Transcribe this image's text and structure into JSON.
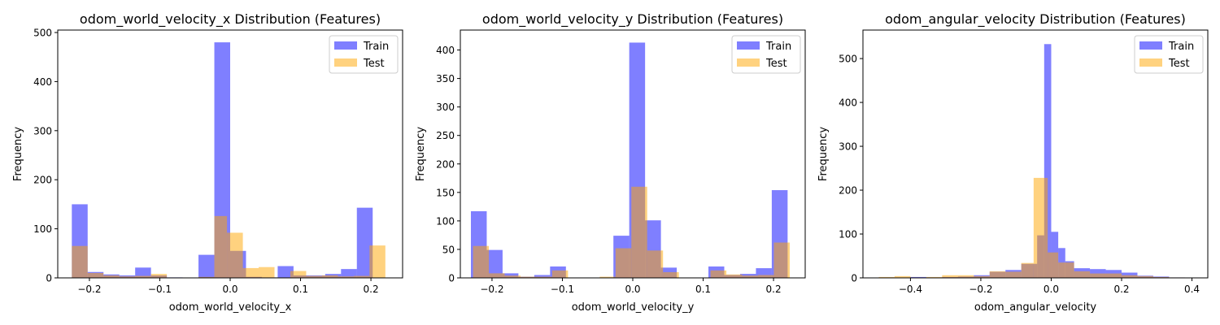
{
  "colors": {
    "train": "#0000ff",
    "test": "#ffa500",
    "bar_alpha": 0.5
  },
  "legend": {
    "train_label": "Train",
    "test_label": "Test",
    "placement": "upper right"
  },
  "chart_data": [
    {
      "type": "histogram",
      "title": "odom_world_velocity_x Distribution (Features)",
      "xlabel": "odom_world_velocity_x",
      "ylabel": "Frequency",
      "xlim": [
        -0.245,
        0.245
      ],
      "ylim": [
        0,
        505
      ],
      "xticks": [
        -0.2,
        -0.1,
        0.0,
        0.1,
        0.2
      ],
      "xtick_labels": [
        "−0.2",
        "−0.1",
        "0.0",
        "0.1",
        "0.2"
      ],
      "yticks": [
        0,
        100,
        200,
        300,
        400,
        500
      ],
      "series": [
        {
          "name": "Train",
          "bin_edges": [
            -0.225,
            -0.2025,
            -0.18,
            -0.1575,
            -0.135,
            -0.1125,
            -0.09,
            -0.0675,
            -0.045,
            -0.0225,
            0.0,
            0.0225,
            0.045,
            0.0675,
            0.09,
            0.1125,
            0.135,
            0.1575,
            0.18,
            0.2025,
            0.225
          ],
          "counts": [
            150,
            12,
            7,
            5,
            21,
            5,
            1,
            0,
            47,
            480,
            55,
            2,
            1,
            24,
            5,
            5,
            8,
            18,
            143,
            0
          ]
        },
        {
          "name": "Test",
          "bin_edges": [
            -0.225,
            -0.2025,
            -0.18,
            -0.1575,
            -0.135,
            -0.1125,
            -0.09,
            -0.0675,
            -0.045,
            -0.0225,
            -0.0045,
            0.018,
            0.0405,
            0.063,
            0.0855,
            0.108,
            0.1305,
            0.153,
            0.1755,
            0.198,
            0.2205
          ],
          "counts": [
            65,
            10,
            5,
            3,
            4,
            8,
            0,
            0,
            2,
            126,
            92,
            20,
            22,
            1,
            14,
            4,
            5,
            3,
            4,
            66
          ]
        }
      ]
    },
    {
      "type": "histogram",
      "title": "odom_world_velocity_y Distribution (Features)",
      "xlabel": "odom_world_velocity_y",
      "ylabel": "Frequency",
      "xlim": [
        -0.245,
        0.245
      ],
      "ylim": [
        0,
        435
      ],
      "xticks": [
        -0.2,
        -0.1,
        0.0,
        0.1,
        0.2
      ],
      "xtick_labels": [
        "−0.2",
        "−0.1",
        "0.0",
        "0.1",
        "0.2"
      ],
      "yticks": [
        0,
        50,
        100,
        150,
        200,
        250,
        300,
        350,
        400
      ],
      "series": [
        {
          "name": "Train",
          "bin_edges": [
            -0.23,
            -0.2075,
            -0.185,
            -0.1625,
            -0.14,
            -0.1175,
            -0.095,
            -0.0725,
            -0.05,
            -0.0275,
            -0.005,
            0.0175,
            0.04,
            0.0625,
            0.085,
            0.1075,
            0.13,
            0.1525,
            0.175,
            0.1975,
            0.22
          ],
          "counts": [
            117,
            49,
            8,
            2,
            5,
            20,
            0,
            0,
            0,
            74,
            413,
            101,
            18,
            0,
            0,
            20,
            5,
            7,
            17,
            154
          ]
        },
        {
          "name": "Test",
          "bin_edges": [
            -0.227,
            -0.2045,
            -0.182,
            -0.1595,
            -0.137,
            -0.1145,
            -0.092,
            -0.0695,
            -0.047,
            -0.0245,
            -0.002,
            0.0205,
            0.043,
            0.0655,
            0.088,
            0.1105,
            0.133,
            0.1555,
            0.178,
            0.2005,
            0.223
          ],
          "counts": [
            56,
            8,
            4,
            2,
            2,
            13,
            0,
            0,
            2,
            52,
            160,
            48,
            10,
            0,
            0,
            13,
            6,
            4,
            5,
            62
          ]
        }
      ]
    },
    {
      "type": "histogram",
      "title": "odom_angular_velocity Distribution (Features)",
      "xlabel": "odom_angular_velocity",
      "ylabel": "Frequency",
      "xlim": [
        -0.535,
        0.445
      ],
      "ylim": [
        0,
        565
      ],
      "xticks": [
        -0.4,
        -0.2,
        0.0,
        0.2,
        0.4
      ],
      "xtick_labels": [
        "−0.4",
        "−0.2",
        "0.0",
        "0.2",
        "0.4"
      ],
      "yticks": [
        0,
        100,
        200,
        300,
        400,
        500
      ],
      "series": [
        {
          "name": "Train",
          "bin_edges": [
            -0.4,
            -0.355,
            -0.31,
            -0.265,
            -0.22,
            -0.175,
            -0.13,
            -0.085,
            -0.04,
            -0.02,
            0.0,
            0.02,
            0.04,
            0.065,
            0.11,
            0.155,
            0.2,
            0.245,
            0.29,
            0.335,
            0.38
          ],
          "counts": [
            2,
            1,
            2,
            3,
            6,
            14,
            18,
            32,
            97,
            533,
            105,
            68,
            38,
            22,
            20,
            18,
            12,
            5,
            3,
            1
          ]
        },
        {
          "name": "Test",
          "bin_edges": [
            -0.49,
            -0.445,
            -0.4,
            -0.355,
            -0.31,
            -0.265,
            -0.22,
            -0.175,
            -0.13,
            -0.085,
            -0.05,
            -0.01,
            0.02,
            0.065,
            0.11,
            0.155,
            0.2,
            0.245,
            0.29,
            0.335,
            0.38
          ],
          "counts": [
            2,
            4,
            1,
            2,
            6,
            6,
            4,
            15,
            14,
            34,
            228,
            58,
            35,
            15,
            10,
            10,
            6,
            4,
            2,
            1
          ]
        }
      ]
    }
  ]
}
